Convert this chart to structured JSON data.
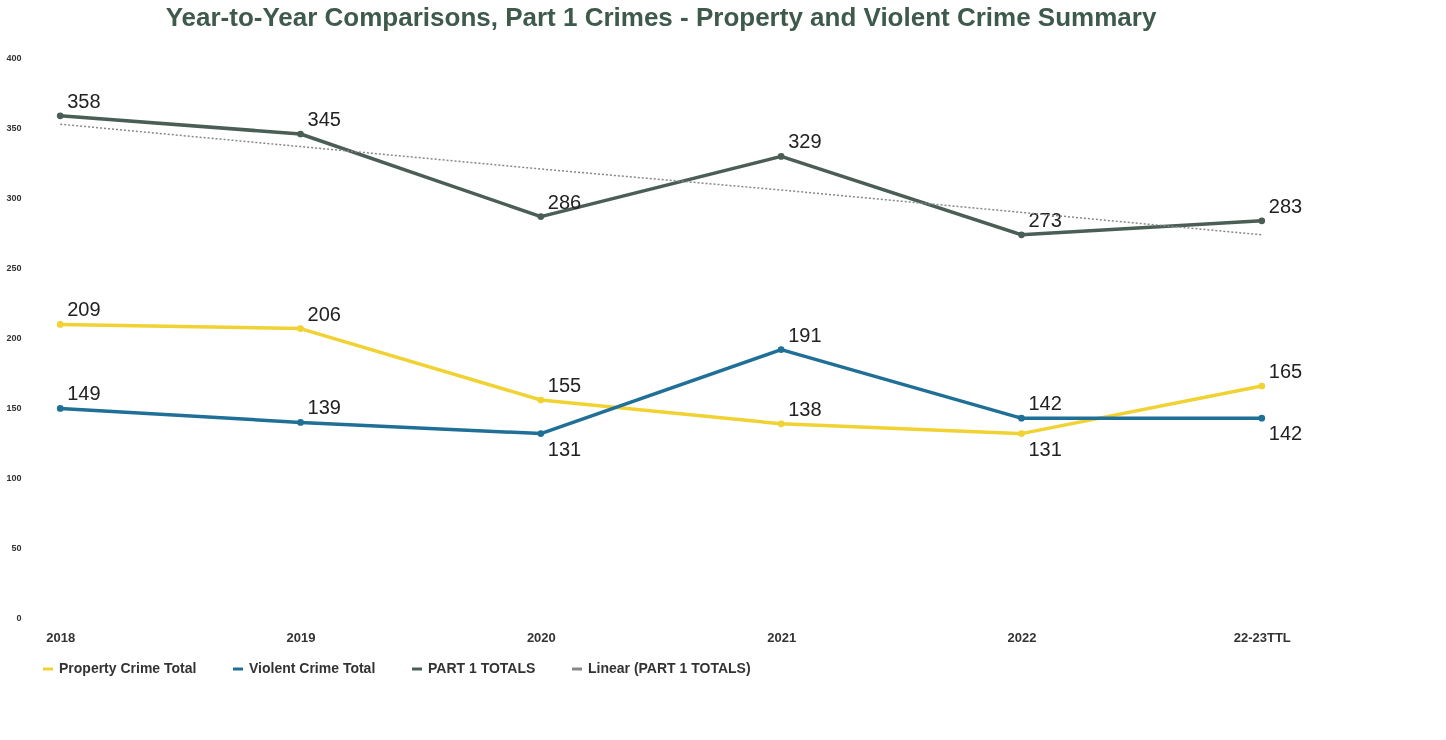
{
  "chart_data": {
    "type": "line",
    "title": "Year-to-Year Comparisons, Part 1 Crimes - Property and Violent Crime Summary",
    "categories": [
      "2018",
      "2019",
      "2020",
      "2021",
      "2022",
      "22-23TTL"
    ],
    "series": [
      {
        "name": "Property Crime Total",
        "color": "#f0d232",
        "values": [
          209,
          206,
          155,
          138,
          131,
          165
        ],
        "value_labels": [
          "209",
          "206",
          "155",
          "138",
          "131",
          "165"
        ]
      },
      {
        "name": "Violent Crime Total",
        "color": "#1f6f96",
        "values": [
          149,
          139,
          131,
          191,
          142,
          142
        ],
        "value_labels": [
          "149",
          "139",
          "131",
          "191",
          "142",
          "142"
        ]
      },
      {
        "name": "PART 1 TOTALS",
        "color": "#4a5e55",
        "values": [
          358,
          345,
          286,
          329,
          273,
          283
        ],
        "value_labels": [
          "358",
          "345",
          "286",
          "329",
          "273",
          "283"
        ]
      },
      {
        "name": "Linear (PART 1 TOTALS)",
        "color": "#888888",
        "values": [
          352,
          336,
          320,
          305,
          289,
          273
        ],
        "line_style": "dotted",
        "marker": "none"
      }
    ],
    "ylim": [
      0,
      400
    ],
    "yticks": [
      0,
      50,
      100,
      150,
      200,
      250,
      300,
      350,
      400
    ],
    "grid": false,
    "legend": "bottom",
    "marker": "circle",
    "line_style": "solid"
  }
}
